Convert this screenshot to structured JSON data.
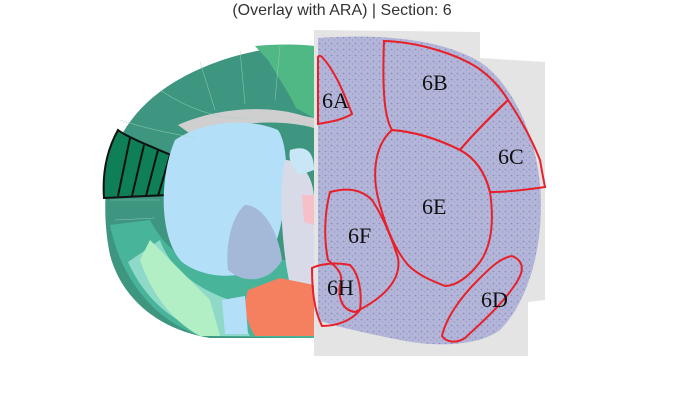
{
  "title": "(Overlay with ARA) | Section: 6",
  "colors": {
    "outline": "#e8202a",
    "cortex_dark": "#3e9680",
    "cortex_green": "#4fb884",
    "highlight": "#0e7f57",
    "ventricle": "#b4dff8",
    "striatum_blue": "#a4b8d8",
    "pink_region": "#f58060",
    "nissl_bg": "#aeb2d6",
    "tissue_bg": "#e4e4e4"
  },
  "regions": [
    {
      "id": "6A",
      "label": "6A"
    },
    {
      "id": "6B",
      "label": "6B"
    },
    {
      "id": "6C",
      "label": "6C"
    },
    {
      "id": "6D",
      "label": "6D"
    },
    {
      "id": "6E",
      "label": "6E"
    },
    {
      "id": "6F",
      "label": "6F"
    },
    {
      "id": "6H",
      "label": "6H"
    }
  ]
}
